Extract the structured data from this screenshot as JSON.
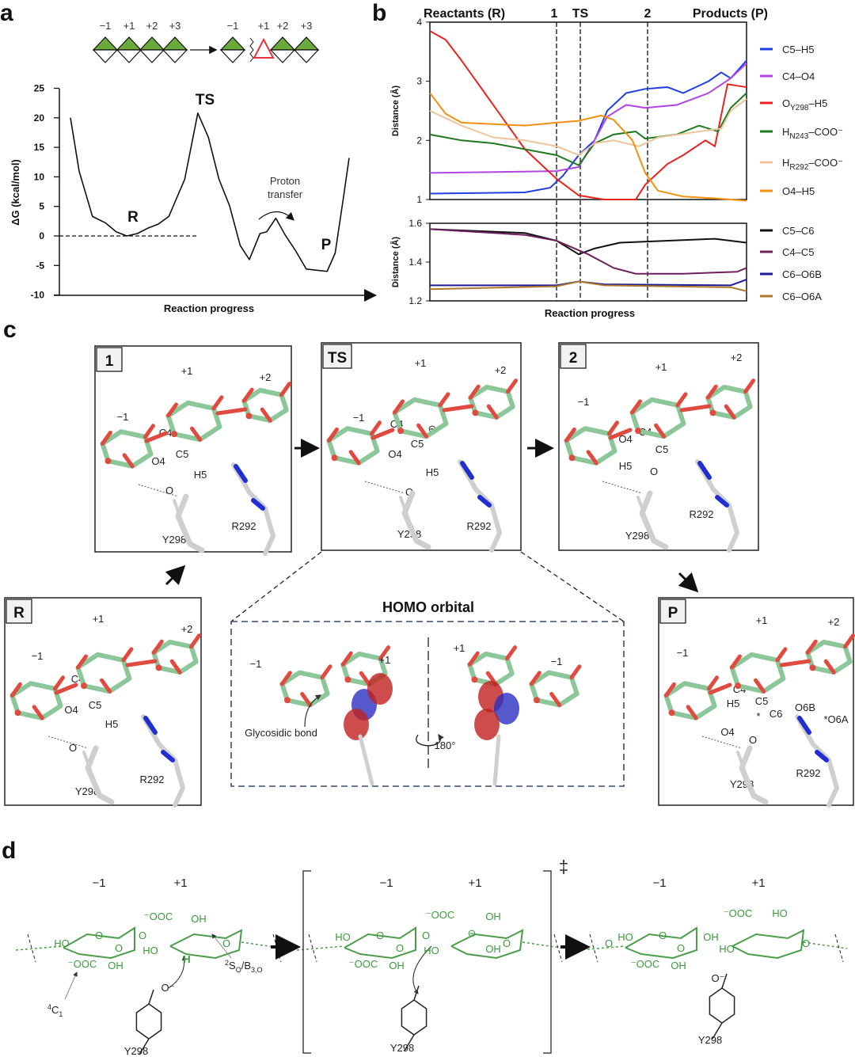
{
  "panel_letters": {
    "a": "a",
    "b": "b",
    "c": "c",
    "d": "d"
  },
  "panel_a": {
    "scheme_before_labels": [
      "−1",
      "+1",
      "+2",
      "+3"
    ],
    "scheme_after_labels": [
      "−1",
      "+1",
      "+2",
      "+3"
    ],
    "colors": {
      "sugar": "#6aaa3a",
      "unsaturated": "#e8323c"
    },
    "state_labels": {
      "R": "R",
      "TS": "TS",
      "P": "P"
    },
    "annotation": [
      "Proton",
      "transfer"
    ]
  },
  "chart_data": [
    {
      "type": "line",
      "panel": "a",
      "xlabel": "Reaction progress",
      "ylabel": "ΔG (kcal/mol)",
      "ylim": [
        -10,
        25
      ],
      "yticks": [
        "25",
        "20",
        "15",
        "10",
        "5",
        "0",
        "-5",
        "-10"
      ],
      "reference_line": {
        "y": 0,
        "style": "dashed"
      },
      "series": [
        {
          "color": "#111111",
          "x": [
            0,
            3.1,
            7.9,
            12.6,
            16.4,
            20.2,
            24,
            27.7,
            31.5,
            35.3,
            41,
            45.7,
            49.5,
            53.3,
            57.1,
            60.9,
            64.2,
            68,
            70.4,
            73.7,
            77,
            80.8,
            84.6,
            88.4,
            92.1,
            95,
            97.8,
            100
          ],
          "y": [
            20,
            11,
            3.3,
            2.2,
            0.7,
            0,
            0.4,
            1.3,
            2,
            3.3,
            9.6,
            20.8,
            16.7,
            9.6,
            5.1,
            -1.6,
            -4,
            0.4,
            0.7,
            3,
            0.2,
            -2.5,
            -5.6,
            -5.8,
            -6,
            -2.9,
            6,
            13.2
          ]
        }
      ]
    },
    {
      "type": "line",
      "panel": "b-top",
      "ylabel": "Distance (Å)",
      "ylim": [
        1,
        4
      ],
      "yticks": [
        "1",
        "2",
        "3",
        "4"
      ],
      "top_labels": {
        "reactants": "Reactants (R)",
        "products": "Products (P)"
      },
      "markers": [
        {
          "label": "1",
          "x": 40
        },
        {
          "label": "TS",
          "x": 47.5
        },
        {
          "label": "2",
          "x": 68.75
        }
      ],
      "legend_position": "right",
      "series": [
        {
          "label": [
            "C5–H5",
            "",
            ""
          ],
          "color": "#1f3fe0",
          "x": [
            0,
            30,
            38,
            42,
            47,
            52,
            56,
            62,
            68,
            75,
            80,
            88,
            92,
            95,
            100
          ],
          "y": [
            1.1,
            1.12,
            1.2,
            1.4,
            1.75,
            2.0,
            2.5,
            2.8,
            2.87,
            2.9,
            2.8,
            3.0,
            3.15,
            3.05,
            3.35
          ]
        },
        {
          "label": [
            "C4–O4",
            "",
            ""
          ],
          "color": "#b445e0",
          "x": [
            0,
            40,
            47,
            52,
            56,
            62,
            68,
            78,
            88,
            95,
            100
          ],
          "y": [
            1.45,
            1.48,
            1.55,
            2.0,
            2.4,
            2.6,
            2.55,
            2.6,
            2.8,
            3.05,
            3.3
          ]
        },
        {
          "label": [
            "O",
            "Y298",
            "–H5"
          ],
          "color": "#e8231e",
          "x": [
            0,
            5,
            10,
            20,
            30,
            40,
            47,
            55,
            65,
            68,
            75,
            80,
            87,
            90,
            94,
            100
          ],
          "y": [
            3.85,
            3.7,
            3.35,
            2.6,
            1.85,
            1.35,
            1.07,
            1.0,
            1.0,
            1.25,
            1.6,
            1.75,
            2.0,
            1.9,
            2.95,
            2.9
          ]
        },
        {
          "label": [
            "H",
            "N243",
            "–COO⁻"
          ],
          "color": "#1e7a1e",
          "x": [
            0,
            10,
            20,
            30,
            40,
            47,
            52,
            58,
            65,
            68,
            78,
            85,
            91,
            95,
            100
          ],
          "y": [
            2.1,
            2.0,
            1.95,
            1.85,
            1.75,
            1.58,
            1.95,
            2.1,
            2.15,
            2.03,
            2.1,
            2.25,
            2.15,
            2.55,
            2.8
          ]
        },
        {
          "label": [
            "H",
            "R292",
            "–COO⁻"
          ],
          "color": "#f0c49a",
          "x": [
            0,
            10,
            20,
            30,
            40,
            47,
            52,
            58,
            66,
            72,
            85,
            92,
            95,
            100
          ],
          "y": [
            2.5,
            2.25,
            2.05,
            2.0,
            1.9,
            1.75,
            1.95,
            2.0,
            1.9,
            2.05,
            2.15,
            2.2,
            2.5,
            2.7
          ]
        },
        {
          "label": [
            "O4–H5",
            "",
            ""
          ],
          "color": "#f0920f",
          "x": [
            0,
            5,
            10,
            30,
            40,
            47,
            54,
            58,
            64,
            68,
            72,
            80,
            90,
            100
          ],
          "y": [
            2.8,
            2.45,
            2.3,
            2.25,
            2.3,
            2.33,
            2.42,
            2.35,
            2.0,
            1.45,
            1.15,
            1.05,
            1.02,
            0.98
          ]
        }
      ]
    },
    {
      "type": "line",
      "panel": "b-bottom",
      "xlabel": "Reaction progress",
      "ylabel": "Distance (Å)",
      "ylim": [
        1.2,
        1.6
      ],
      "yticks": [
        "1.2",
        "1.4",
        "1.6"
      ],
      "legend_position": "right",
      "series": [
        {
          "label": "C5–C6",
          "color": "#111111",
          "x": [
            0,
            30,
            40,
            47,
            52,
            60,
            90,
            100
          ],
          "y": [
            1.57,
            1.55,
            1.51,
            1.44,
            1.47,
            1.5,
            1.52,
            1.5
          ]
        },
        {
          "label": "C4–C5",
          "color": "#6e1f5c",
          "x": [
            0,
            30,
            40,
            50,
            58,
            65,
            80,
            97,
            100
          ],
          "y": [
            1.57,
            1.54,
            1.51,
            1.44,
            1.37,
            1.34,
            1.34,
            1.35,
            1.37
          ]
        },
        {
          "label": "C6–O6B",
          "color": "#1a1a9a",
          "x": [
            0,
            40,
            47,
            55,
            95,
            100
          ],
          "y": [
            1.28,
            1.28,
            1.3,
            1.285,
            1.28,
            1.31
          ]
        },
        {
          "label": "C6–O6A",
          "color": "#b07a2a",
          "x": [
            0,
            40,
            47,
            55,
            95,
            100
          ],
          "y": [
            1.26,
            1.275,
            1.3,
            1.28,
            1.27,
            1.25
          ]
        }
      ]
    }
  ],
  "panel_c": {
    "boxes": [
      {
        "tag": "1",
        "labels": [
          "+1",
          "+2",
          "−1",
          "C4",
          "C5",
          "O4",
          "H5",
          "O",
          "Y298",
          "R292"
        ]
      },
      {
        "tag": "TS",
        "labels": [
          "+1",
          "+2",
          "−1",
          "C4",
          "⊖",
          "C5",
          "O4",
          "H5",
          "O",
          "Y298",
          "R292"
        ]
      },
      {
        "tag": "2",
        "labels": [
          "+1",
          "+2",
          "−1",
          "O4",
          "C4",
          "C5",
          "H5",
          "O",
          "Y298",
          "R292"
        ]
      },
      {
        "tag": "R",
        "labels": [
          "+1",
          "+2",
          "−1",
          "C4",
          "C5",
          "O4",
          "H5",
          "O",
          "Y298",
          "R292"
        ]
      },
      {
        "tag": "P",
        "labels": [
          "+1",
          "+2",
          "−1",
          "C4",
          "C5",
          "H5",
          "C6",
          "*",
          "O6B",
          "*O6A",
          "O4",
          "O",
          "Y298",
          "R292"
        ]
      }
    ],
    "homo": {
      "title": "HOMO orbital",
      "labels": [
        "−1",
        "+1",
        "+1",
        "−1"
      ],
      "glycosidic_bond": "Glycosidic bond",
      "rotation": "180°"
    }
  },
  "panel_d": {
    "subsite_labels": [
      "−1",
      "+1",
      "−1",
      "+1",
      "−1",
      "+1"
    ],
    "ts_symbol": "‡",
    "residue": [
      "Y298",
      "Y298",
      "Y298"
    ],
    "conformations": {
      "left": [
        "4",
        "C",
        "1"
      ],
      "right": [
        "2",
        "S",
        "O",
        "/B",
        "3,O"
      ]
    },
    "structure_labels": [
      "HO",
      "O",
      "O",
      "⁻OOC",
      "OH",
      "⁻OOC",
      "OH",
      "HO",
      "H",
      "O",
      "O",
      "O⁻",
      "HO",
      "O",
      "O",
      "⁻OOC",
      "OH",
      "⁻OOC",
      "OH",
      "HO",
      "O",
      "O",
      "⊖",
      "OH",
      "HO",
      "O",
      "O",
      "⁻OOC",
      "OH",
      "OH",
      "⁻OOC",
      "HO",
      "HO",
      "O",
      "O",
      "O⁻"
    ]
  }
}
